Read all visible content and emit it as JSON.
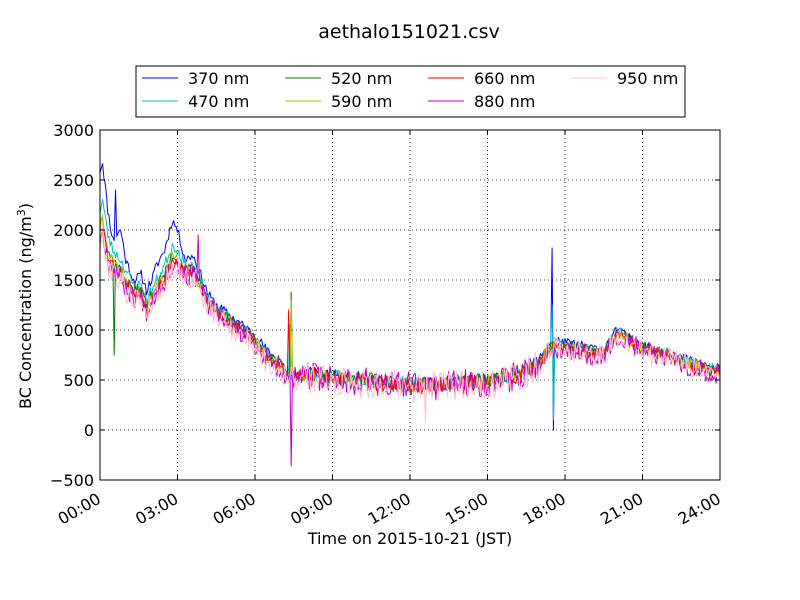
{
  "chart_data": {
    "type": "line",
    "title": "aethalo151021.csv",
    "xlabel": "Time on 2015-10-21 (JST)",
    "ylabel": "BC Concentration (ng/m",
    "ylabel_superscript": "3",
    "ylabel_suffix": ")",
    "xlim": [
      0,
      24
    ],
    "ylim": [
      -500,
      3000
    ],
    "grid": true,
    "legend_placement": "top-center, above plot",
    "x_tick_labels": [
      "00:00",
      "03:00",
      "06:00",
      "09:00",
      "12:00",
      "15:00",
      "18:00",
      "21:00",
      "24:00"
    ],
    "x_tick_values": [
      0,
      3,
      6,
      9,
      12,
      15,
      18,
      21,
      24
    ],
    "y_tick_labels": [
      "−500",
      "0",
      "500",
      "1000",
      "1500",
      "2000",
      "2500",
      "3000"
    ],
    "y_tick_values": [
      -500,
      0,
      500,
      1000,
      1500,
      2000,
      2500,
      3000
    ],
    "profile_x": [
      0,
      0.1,
      0.3,
      0.5,
      0.8,
      1.0,
      1.3,
      1.6,
      1.8,
      2.0,
      2.2,
      2.5,
      2.8,
      3.0,
      3.3,
      3.6,
      3.9,
      4.2,
      4.5,
      5.0,
      5.5,
      6.0,
      6.3,
      6.6,
      7.0,
      7.2,
      7.4,
      7.6,
      8.0,
      8.5,
      9.0,
      9.5,
      10.0,
      10.5,
      11.0,
      11.5,
      12.0,
      12.5,
      13.0,
      13.5,
      14.0,
      14.5,
      15.0,
      15.5,
      16.0,
      16.5,
      17.0,
      17.3,
      17.6,
      18.0,
      18.5,
      19.0,
      19.5,
      20.0,
      20.3,
      20.6,
      21.0,
      21.5,
      22.0,
      22.5,
      23.0,
      23.5,
      24.0
    ],
    "series": [
      {
        "name": "370 nm",
        "color": "#0000ff",
        "seed": 11,
        "noise": 50,
        "values": [
          2600,
          2680,
          2200,
          1900,
          2000,
          1700,
          1500,
          1550,
          1400,
          1500,
          1650,
          1800,
          2100,
          2000,
          1700,
          1750,
          1550,
          1350,
          1250,
          1150,
          1050,
          950,
          850,
          750,
          700,
          600,
          560,
          550,
          570,
          560,
          540,
          530,
          520,
          510,
          490,
          480,
          470,
          460,
          470,
          480,
          490,
          500,
          500,
          520,
          560,
          630,
          700,
          850,
          900,
          870,
          850,
          820,
          800,
          1000,
          950,
          900,
          850,
          800,
          780,
          720,
          680,
          640,
          600
        ],
        "spikes": [
          [
            0.6,
            2400
          ],
          [
            17.5,
            1820
          ],
          [
            17.55,
            0
          ]
        ]
      },
      {
        "name": "470 nm",
        "color": "#00bfbf",
        "seed": 23,
        "noise": 55,
        "values": [
          2200,
          2300,
          1950,
          1800,
          1700,
          1600,
          1450,
          1450,
          1300,
          1400,
          1500,
          1650,
          1850,
          1800,
          1650,
          1650,
          1500,
          1300,
          1220,
          1120,
          1020,
          920,
          820,
          720,
          680,
          580,
          550,
          540,
          560,
          550,
          530,
          520,
          510,
          500,
          480,
          470,
          460,
          455,
          465,
          475,
          485,
          490,
          495,
          510,
          550,
          610,
          680,
          820,
          870,
          850,
          830,
          800,
          790,
          1000,
          950,
          900,
          840,
          790,
          770,
          710,
          670,
          630,
          590
        ],
        "spikes": [
          [
            17.5,
            1250
          ],
          [
            17.55,
            100
          ],
          [
            7.35,
            1050
          ]
        ]
      },
      {
        "name": "520 nm",
        "color": "#008000",
        "seed": 37,
        "noise": 60,
        "values": [
          2050,
          2150,
          1800,
          1700,
          1600,
          1500,
          1400,
          1400,
          1250,
          1350,
          1450,
          1550,
          1750,
          1700,
          1600,
          1600,
          1450,
          1280,
          1200,
          1100,
          1000,
          900,
          800,
          700,
          670,
          570,
          545,
          535,
          555,
          545,
          525,
          515,
          505,
          495,
          475,
          465,
          455,
          450,
          460,
          470,
          480,
          485,
          490,
          505,
          545,
          600,
          670,
          800,
          860,
          840,
          820,
          790,
          780,
          980,
          940,
          890,
          830,
          780,
          760,
          700,
          660,
          620,
          580
        ],
        "spikes": [
          [
            0.55,
            750
          ],
          [
            7.4,
            1380
          ]
        ]
      },
      {
        "name": "590 nm",
        "color": "#bfbf00",
        "seed": 41,
        "noise": 60,
        "values": [
          2000,
          2100,
          1780,
          1680,
          1580,
          1480,
          1380,
          1380,
          1240,
          1340,
          1440,
          1540,
          1720,
          1690,
          1590,
          1580,
          1440,
          1270,
          1190,
          1090,
          990,
          890,
          790,
          690,
          660,
          560,
          540,
          530,
          550,
          540,
          520,
          510,
          500,
          490,
          470,
          460,
          450,
          445,
          455,
          465,
          475,
          480,
          485,
          500,
          540,
          595,
          665,
          790,
          850,
          830,
          810,
          780,
          770,
          970,
          930,
          880,
          820,
          770,
          750,
          690,
          650,
          610,
          570
        ],
        "spikes": [
          [
            7.38,
            1300
          ]
        ]
      },
      {
        "name": "660 nm",
        "color": "#ff0000",
        "seed": 53,
        "noise": 65,
        "values": [
          1950,
          2050,
          1750,
          1650,
          1560,
          1460,
          1360,
          1360,
          1220,
          1320,
          1420,
          1520,
          1700,
          1680,
          1580,
          1570,
          1430,
          1260,
          1180,
          1080,
          980,
          880,
          780,
          680,
          650,
          550,
          535,
          525,
          545,
          535,
          515,
          505,
          495,
          485,
          465,
          455,
          445,
          440,
          450,
          460,
          470,
          475,
          480,
          495,
          535,
          590,
          660,
          780,
          840,
          820,
          800,
          770,
          760,
          960,
          920,
          870,
          810,
          760,
          740,
          680,
          640,
          600,
          560
        ],
        "spikes": [
          [
            7.3,
            1200
          ]
        ]
      },
      {
        "name": "880 nm",
        "color": "#bf00bf",
        "seed": 67,
        "noise": 110,
        "values": [
          1900,
          2000,
          1700,
          1620,
          1530,
          1430,
          1330,
          1330,
          1200,
          1300,
          1400,
          1500,
          1650,
          1640,
          1550,
          1540,
          1400,
          1240,
          1160,
          1060,
          960,
          860,
          760,
          660,
          630,
          540,
          530,
          520,
          540,
          530,
          510,
          500,
          490,
          480,
          460,
          450,
          440,
          435,
          445,
          455,
          465,
          470,
          475,
          490,
          530,
          585,
          650,
          770,
          830,
          810,
          790,
          760,
          750,
          950,
          910,
          860,
          800,
          750,
          730,
          670,
          630,
          590,
          550
        ],
        "spikes": [
          [
            3.8,
            1950
          ],
          [
            7.42,
            -360
          ]
        ]
      },
      {
        "name": "950 nm",
        "color": "#ffc0cb",
        "seed": 79,
        "noise": 120,
        "values": [
          1850,
          1950,
          1650,
          1580,
          1500,
          1400,
          1300,
          1300,
          1180,
          1280,
          1380,
          1480,
          1620,
          1610,
          1520,
          1510,
          1380,
          1220,
          1140,
          1040,
          940,
          840,
          740,
          640,
          610,
          530,
          520,
          510,
          530,
          520,
          500,
          490,
          480,
          470,
          450,
          440,
          430,
          425,
          435,
          445,
          455,
          460,
          465,
          480,
          520,
          575,
          640,
          760,
          820,
          800,
          780,
          750,
          740,
          940,
          900,
          850,
          790,
          740,
          720,
          660,
          620,
          580,
          540
        ],
        "spikes": [
          [
            12.6,
            80
          ]
        ]
      }
    ]
  }
}
